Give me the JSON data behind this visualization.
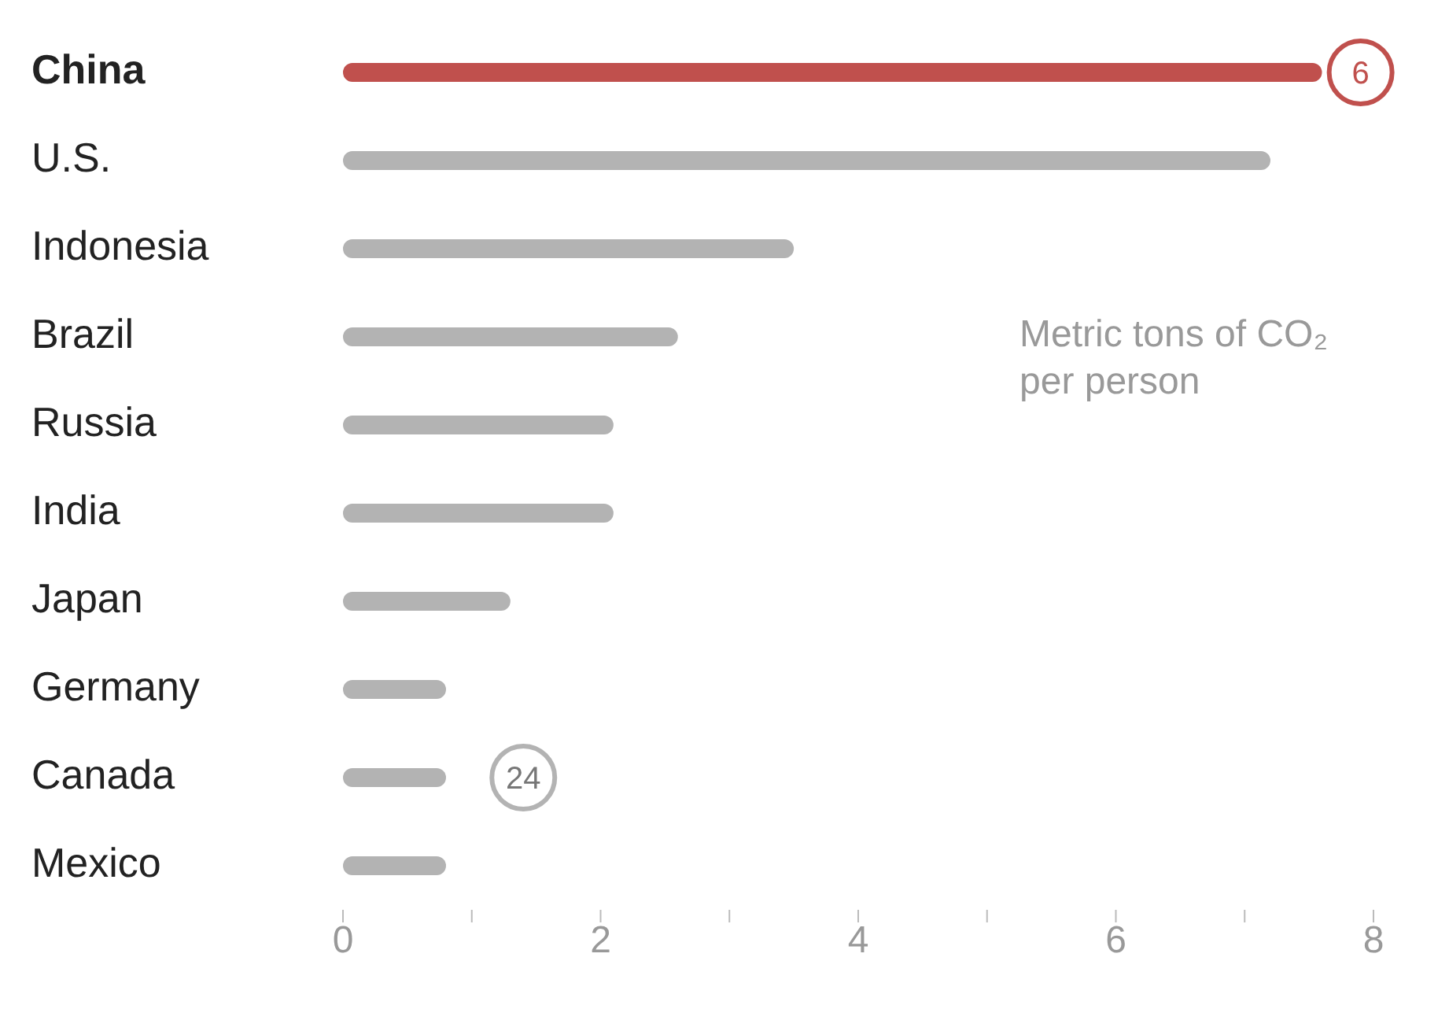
{
  "chart_data": {
    "type": "bar",
    "orientation": "horizontal",
    "categories": [
      "China",
      "U.S.",
      "Indonesia",
      "Brazil",
      "Russia",
      "India",
      "Japan",
      "Germany",
      "Canada",
      "Mexico"
    ],
    "values": [
      7.6,
      7.2,
      3.5,
      2.6,
      2.1,
      2.1,
      1.3,
      0.8,
      0.8,
      0.8
    ],
    "colors": [
      "#c0504d",
      "#b3b3b3",
      "#b3b3b3",
      "#b3b3b3",
      "#b3b3b3",
      "#b3b3b3",
      "#b3b3b3",
      "#b3b3b3",
      "#b3b3b3",
      "#b3b3b3"
    ],
    "xlim": [
      0,
      8
    ],
    "xticks": [
      0,
      {
        "value": 1,
        "label": null
      },
      2,
      {
        "value": 3,
        "label": null
      },
      4,
      {
        "value": 5,
        "label": null
      },
      6,
      {
        "value": 7,
        "label": null
      },
      8
    ],
    "annotations": [
      "Metric tons of CO₂ per person",
      {
        "text": "6",
        "x": 7.9,
        "y": "China"
      },
      {
        "text": "24",
        "x": 1.4,
        "y": "Canada"
      }
    ]
  }
}
